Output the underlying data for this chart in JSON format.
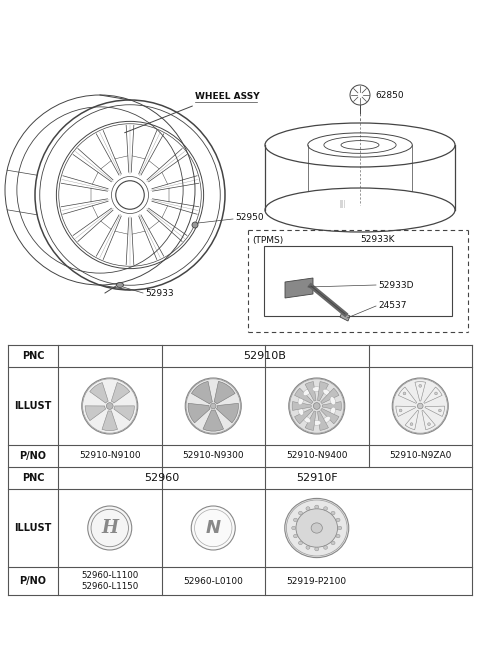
{
  "bg_color": "#ffffff",
  "line_color": "#444444",
  "text_color": "#111111",
  "table_line_color": "#555555",
  "diagram_labels": {
    "wheel_assy": "WHEEL ASSY",
    "part_52950": "52950",
    "part_52933": "52933",
    "part_62850": "62850",
    "part_52933K": "52933K",
    "part_52933D": "52933D",
    "part_24537": "24537",
    "tpms": "(TPMS)"
  },
  "table_row1_pnc": "52910B",
  "table_row3_pno": [
    "52910-N9100",
    "52910-N9300",
    "52910-N9400",
    "52910-N9ZA0"
  ],
  "table_row4_pnc_left": "52960",
  "table_row4_pnc_right": "52910F",
  "table_row6_pno": [
    "52960-L1100\n52960-L1150",
    "52960-L0100",
    "52919-P2100"
  ],
  "label_pnc": "PNC",
  "label_illust": "ILLUST",
  "label_pno": "P/NO"
}
